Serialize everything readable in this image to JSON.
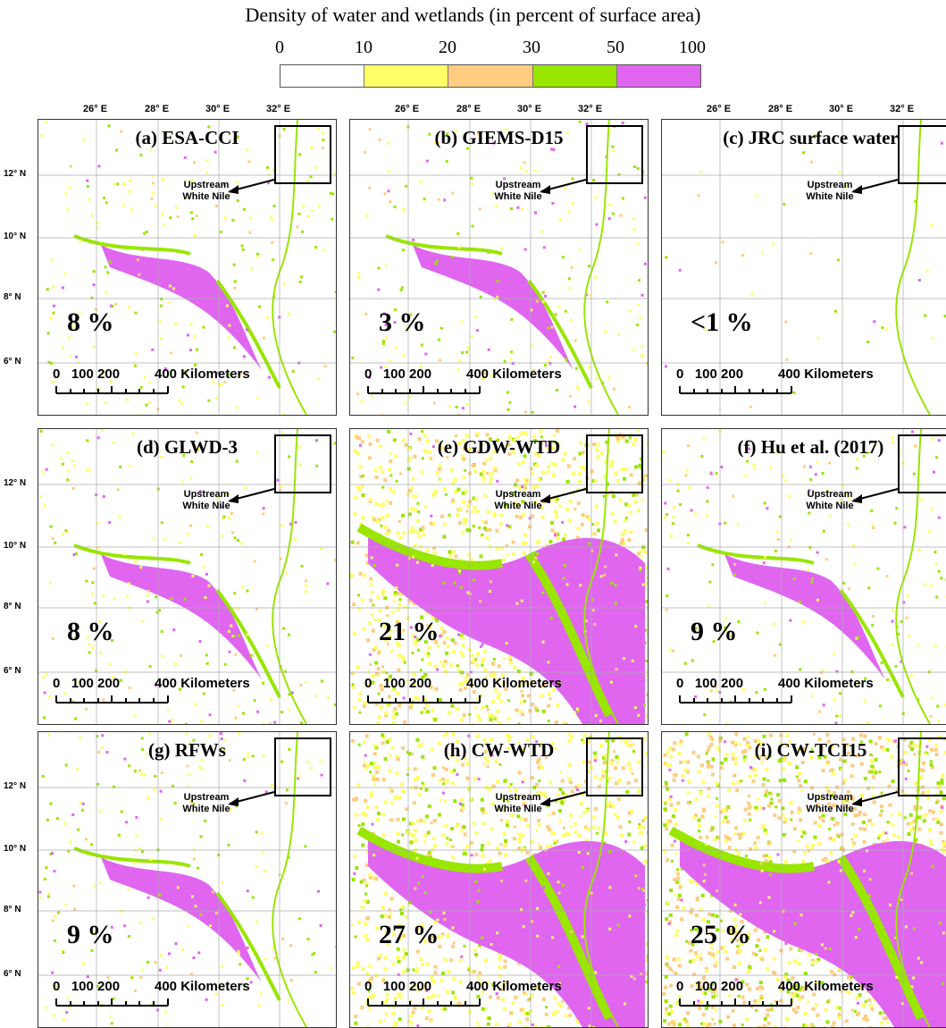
{
  "title": "Density of water and wetlands (in percent of surface area)",
  "legend": {
    "ticks": [
      "0",
      "10",
      "20",
      "30",
      "50",
      "100"
    ],
    "colors": [
      "#ffffff",
      "#ffff66",
      "#ffcc80",
      "#99e600",
      "#e066f0"
    ]
  },
  "axes": {
    "lon": [
      "26° E",
      "28° E",
      "30° E",
      "32° E"
    ],
    "lat": [
      "12° N",
      "10° N",
      "8° N",
      "6° N"
    ]
  },
  "scalebar": {
    "numbers": "0   100 200",
    "end": "400 Kilometers"
  },
  "upstream": [
    "Upstream",
    "White Nile"
  ],
  "panels": [
    {
      "label": "(a) ESA-CCI",
      "percent": "8 %",
      "density": "low"
    },
    {
      "label": "(b) GIEMS-D15",
      "percent": "3 %",
      "density": "low"
    },
    {
      "label": "(c) JRC surface water",
      "percent": "<1 %",
      "density": "verylow"
    },
    {
      "label": "(d) GLWD-3",
      "percent": "8 %",
      "density": "low"
    },
    {
      "label": "(e) GDW-WTD",
      "percent": "21 %",
      "density": "high"
    },
    {
      "label": "(f) Hu et al. (2017)",
      "percent": "9 %",
      "density": "mid"
    },
    {
      "label": "(g) RFWs",
      "percent": "9 %",
      "density": "low"
    },
    {
      "label": "(h) CW-WTD",
      "percent": "27 %",
      "density": "high"
    },
    {
      "label": "(i) CW-TCI15",
      "percent": "25 %",
      "density": "veryhigh"
    }
  ]
}
